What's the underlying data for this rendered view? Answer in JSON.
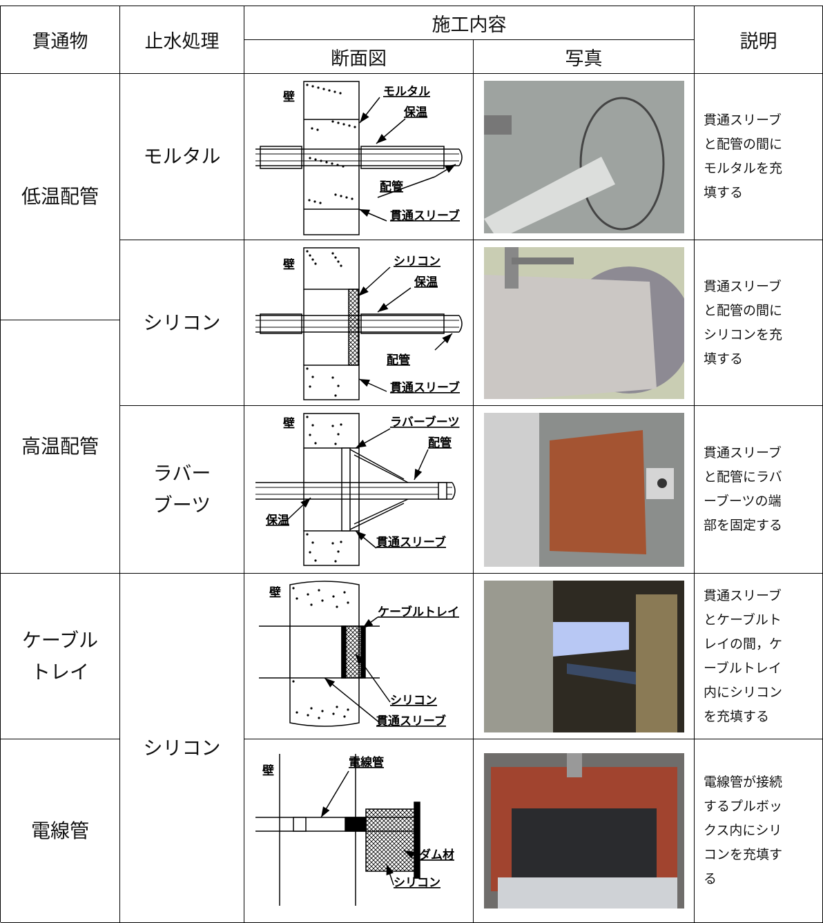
{
  "header": {
    "penetration": "貫通物",
    "treatment": "止水処理",
    "work": "施工内容",
    "section": "断面図",
    "photo": "写真",
    "description": "説明"
  },
  "rows": [
    {
      "penetration": "低温配管",
      "treatment": "モルタル",
      "diagram_labels": [
        "壁",
        "モルタル",
        "保温",
        "配管",
        "貫通スリーブ"
      ],
      "description": "貫通スリーブと配管の間にモルタルを充填する"
    },
    {
      "treatment": "シリコン",
      "diagram_labels": [
        "壁",
        "シリコン",
        "保温",
        "配管",
        "貫通スリーブ"
      ],
      "description": "貫通スリーブと配管の間にシリコンを充填する"
    },
    {
      "penetration": "高温配管",
      "treatment": "ラバー\nブーツ",
      "diagram_labels": [
        "壁",
        "ラバーブーツ",
        "配管",
        "保温",
        "貫通スリーブ"
      ],
      "description": "貫通スリーブと配管にラバーブーツの端部を固定する"
    },
    {
      "penetration": "ケーブル\nトレイ",
      "treatment": "シリコン",
      "diagram_labels": [
        "壁",
        "ケーブルトレイ",
        "シリコン",
        "貫通スリーブ"
      ],
      "description": "貫通スリーブとケーブルトレイの間，ケーブルトレイ内にシリコンを充填する"
    },
    {
      "penetration": "電線管",
      "diagram_labels": [
        "壁",
        "電線管",
        "ダム材",
        "シリコン"
      ],
      "description": "電線管が接続するプルボックス内にシリコンを充填する"
    }
  ]
}
